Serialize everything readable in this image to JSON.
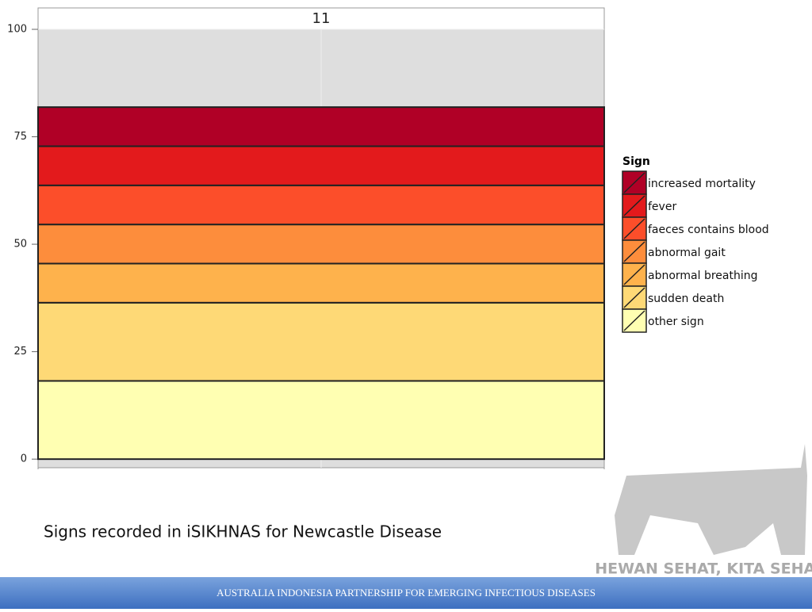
{
  "chart_data": {
    "type": "stacked_bar",
    "categories": [
      "11"
    ],
    "series": [
      {
        "name": "increased mortality",
        "color": "#b00026",
        "values": [
          9.1
        ]
      },
      {
        "name": "fever",
        "color": "#e31a1c",
        "values": [
          9.1
        ]
      },
      {
        "name": "faeces contains blood",
        "color": "#fc4e2a",
        "values": [
          9.1
        ]
      },
      {
        "name": "abnormal gait",
        "color": "#fd8d3c",
        "values": [
          9.1
        ]
      },
      {
        "name": "abnormal breathing",
        "color": "#feb24c",
        "values": [
          9.1
        ]
      },
      {
        "name": "sudden death",
        "color": "#fed976",
        "values": [
          18.2
        ]
      },
      {
        "name": "other sign",
        "color": "#ffffb2",
        "values": [
          18.2
        ]
      }
    ],
    "legend_title": "Sign",
    "legend": "right",
    "ylim": [
      -2,
      100
    ],
    "yticks": [
      0,
      25,
      50,
      75,
      100
    ],
    "grid": true
  },
  "caption": "Signs recorded in iSIKHNAS for Newcastle Disease",
  "logo": "HEWAN SEHAT, KITA SEHAT",
  "footer": "AUSTRALIA INDONESIA PARTNERSHIP FOR EMERGING INFECTIOUS DISEASES"
}
